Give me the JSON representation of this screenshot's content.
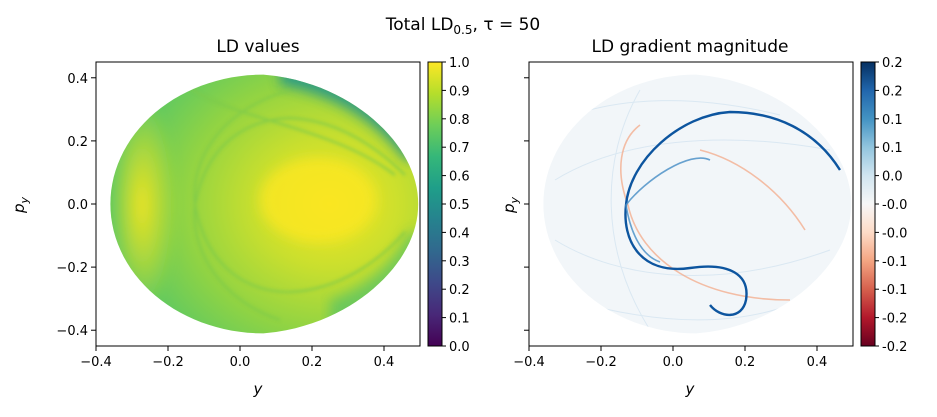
{
  "suptitle": {
    "prefix": "Total LD",
    "subscript": "0.5",
    "suffix": ", τ = 50"
  },
  "chart_data": [
    {
      "type": "heatmap",
      "title": "LD values",
      "xlabel": "y",
      "ylabel": "p_y",
      "xlim": [
        -0.4,
        0.5
      ],
      "ylim": [
        -0.45,
        0.45
      ],
      "xticks": [
        "−0.4",
        "−0.2",
        "0.0",
        "0.2",
        "0.4"
      ],
      "yticks": [
        "0.4",
        "0.2",
        "0.0",
        "−0.2",
        "−0.4"
      ],
      "colormap": "viridis",
      "colorbar": {
        "range": [
          0.0,
          1.0
        ],
        "ticks": [
          "1.0",
          "0.9",
          "0.8",
          "0.7",
          "0.6",
          "0.5",
          "0.4",
          "0.3",
          "0.2",
          "0.1",
          "0.0"
        ]
      },
      "region": "egg-shaped energy surface, y ∈ [−0.36, 0.49], p_y ∈ [−0.41, 0.41]",
      "value_range_observed": [
        0.55,
        1.0
      ],
      "grid": false
    },
    {
      "type": "heatmap",
      "title": "LD gradient magnitude",
      "xlabel": "y",
      "ylabel": "p_y",
      "xlim": [
        -0.4,
        0.5
      ],
      "ylim": [
        -0.45,
        0.45
      ],
      "xticks": [
        "−0.4",
        "−0.2",
        "0.0",
        "0.2",
        "0.4"
      ],
      "yticks": [
        "",
        "",
        "",
        "",
        ""
      ],
      "colormap": "RdBu",
      "colorbar": {
        "range": [
          -0.2,
          0.2
        ],
        "ticks": [
          "0.2",
          "0.2",
          "0.1",
          "0.1",
          "0.0",
          "-0.0",
          "-0.0",
          "-0.1",
          "-0.1",
          "-0.2",
          "-0.2"
        ]
      },
      "grid": false
    }
  ],
  "colors": {
    "viridis": [
      "#440154",
      "#482878",
      "#3e4989",
      "#31688e",
      "#26828e",
      "#1f9e89",
      "#35b779",
      "#6ece58",
      "#b5de2b",
      "#fde725"
    ],
    "rdbu": [
      "#67001f",
      "#b2182b",
      "#d6604d",
      "#f4a582",
      "#fddbc7",
      "#f7f7f7",
      "#d1e5f0",
      "#92c5de",
      "#4393c3",
      "#2166ac",
      "#053061"
    ],
    "ld_low": "#4ec36b",
    "ld_mid": "#9dd93b",
    "ld_high": "#f2e51d",
    "grad_pos": "#0d559f",
    "grad_neg": "#f4a582"
  }
}
